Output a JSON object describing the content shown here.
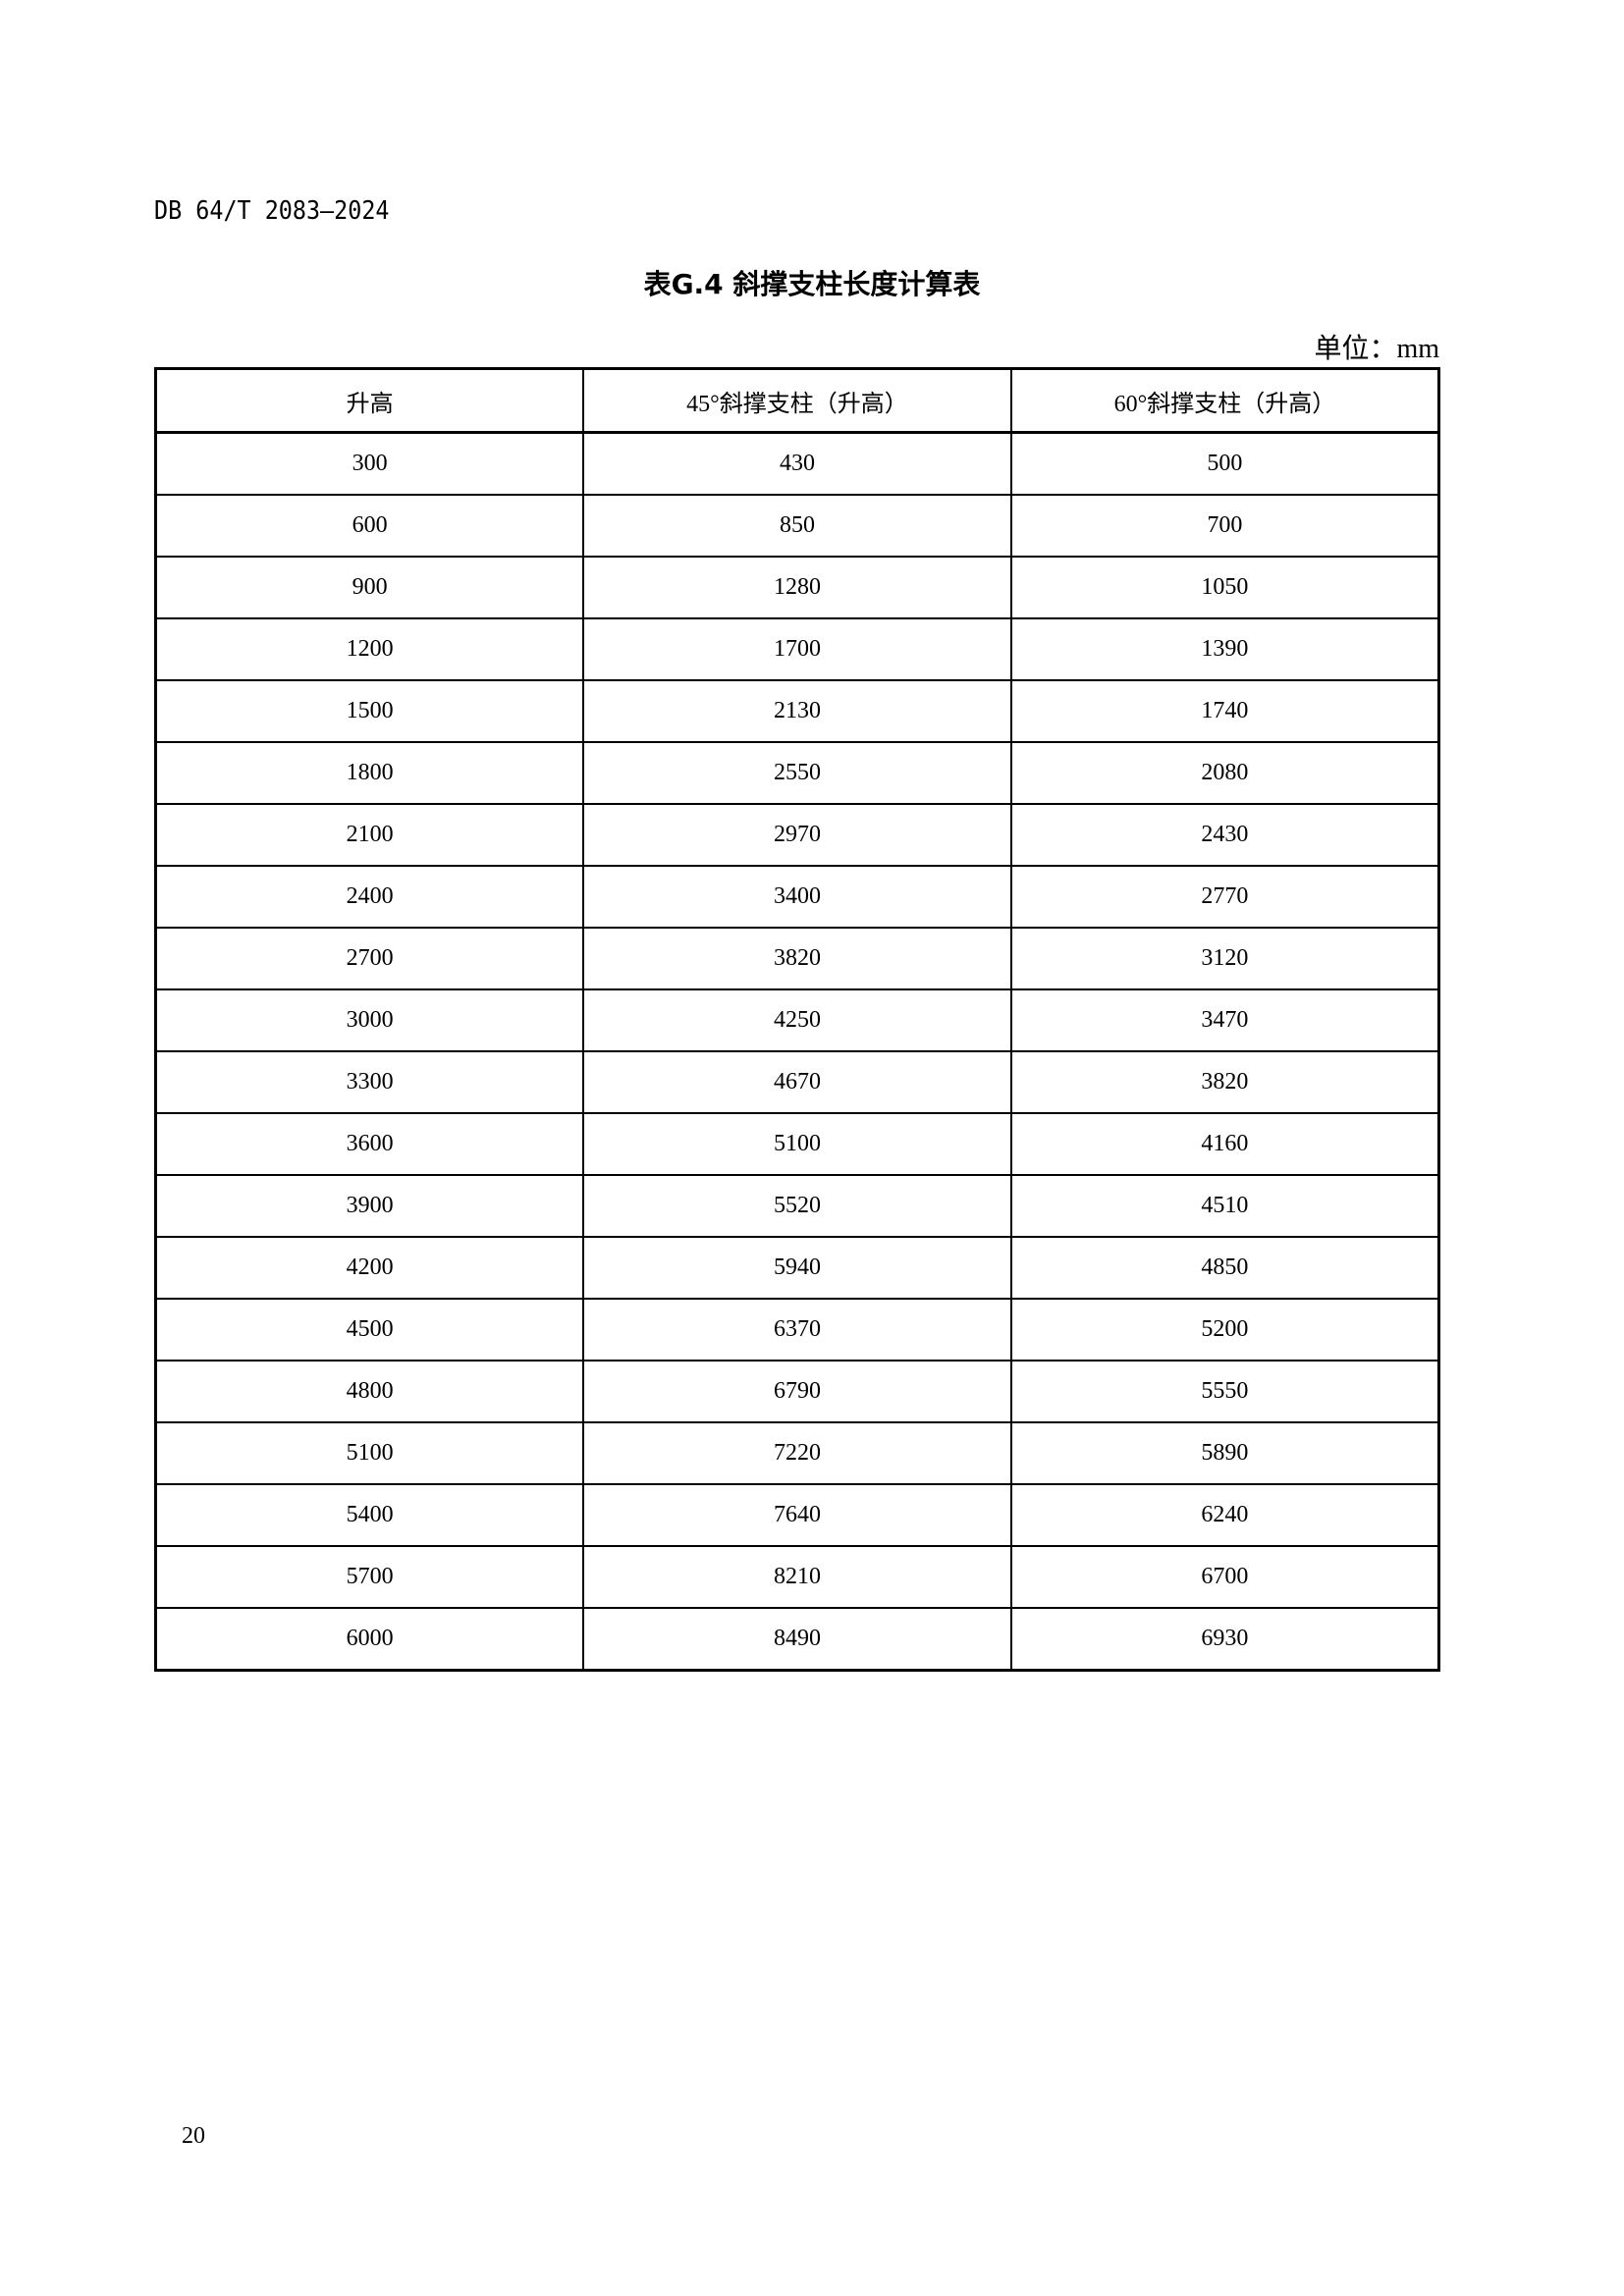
{
  "header": {
    "doc_code": "DB 64/T 2083—2024"
  },
  "title": "表G.4 斜撑支柱长度计算表",
  "unit": "单位：mm",
  "table": {
    "columns": [
      "升高",
      "45°斜撑支柱（升高）",
      "60°斜撑支柱（升高）"
    ],
    "rows": [
      [
        "300",
        "430",
        "500"
      ],
      [
        "600",
        "850",
        "700"
      ],
      [
        "900",
        "1280",
        "1050"
      ],
      [
        "1200",
        "1700",
        "1390"
      ],
      [
        "1500",
        "2130",
        "1740"
      ],
      [
        "1800",
        "2550",
        "2080"
      ],
      [
        "2100",
        "2970",
        "2430"
      ],
      [
        "2400",
        "3400",
        "2770"
      ],
      [
        "2700",
        "3820",
        "3120"
      ],
      [
        "3000",
        "4250",
        "3470"
      ],
      [
        "3300",
        "4670",
        "3820"
      ],
      [
        "3600",
        "5100",
        "4160"
      ],
      [
        "3900",
        "5520",
        "4510"
      ],
      [
        "4200",
        "5940",
        "4850"
      ],
      [
        "4500",
        "6370",
        "5200"
      ],
      [
        "4800",
        "6790",
        "5550"
      ],
      [
        "5100",
        "7220",
        "5890"
      ],
      [
        "5400",
        "7640",
        "6240"
      ],
      [
        "5700",
        "8210",
        "6700"
      ],
      [
        "6000",
        "8490",
        "6930"
      ]
    ]
  },
  "page_number": "20"
}
